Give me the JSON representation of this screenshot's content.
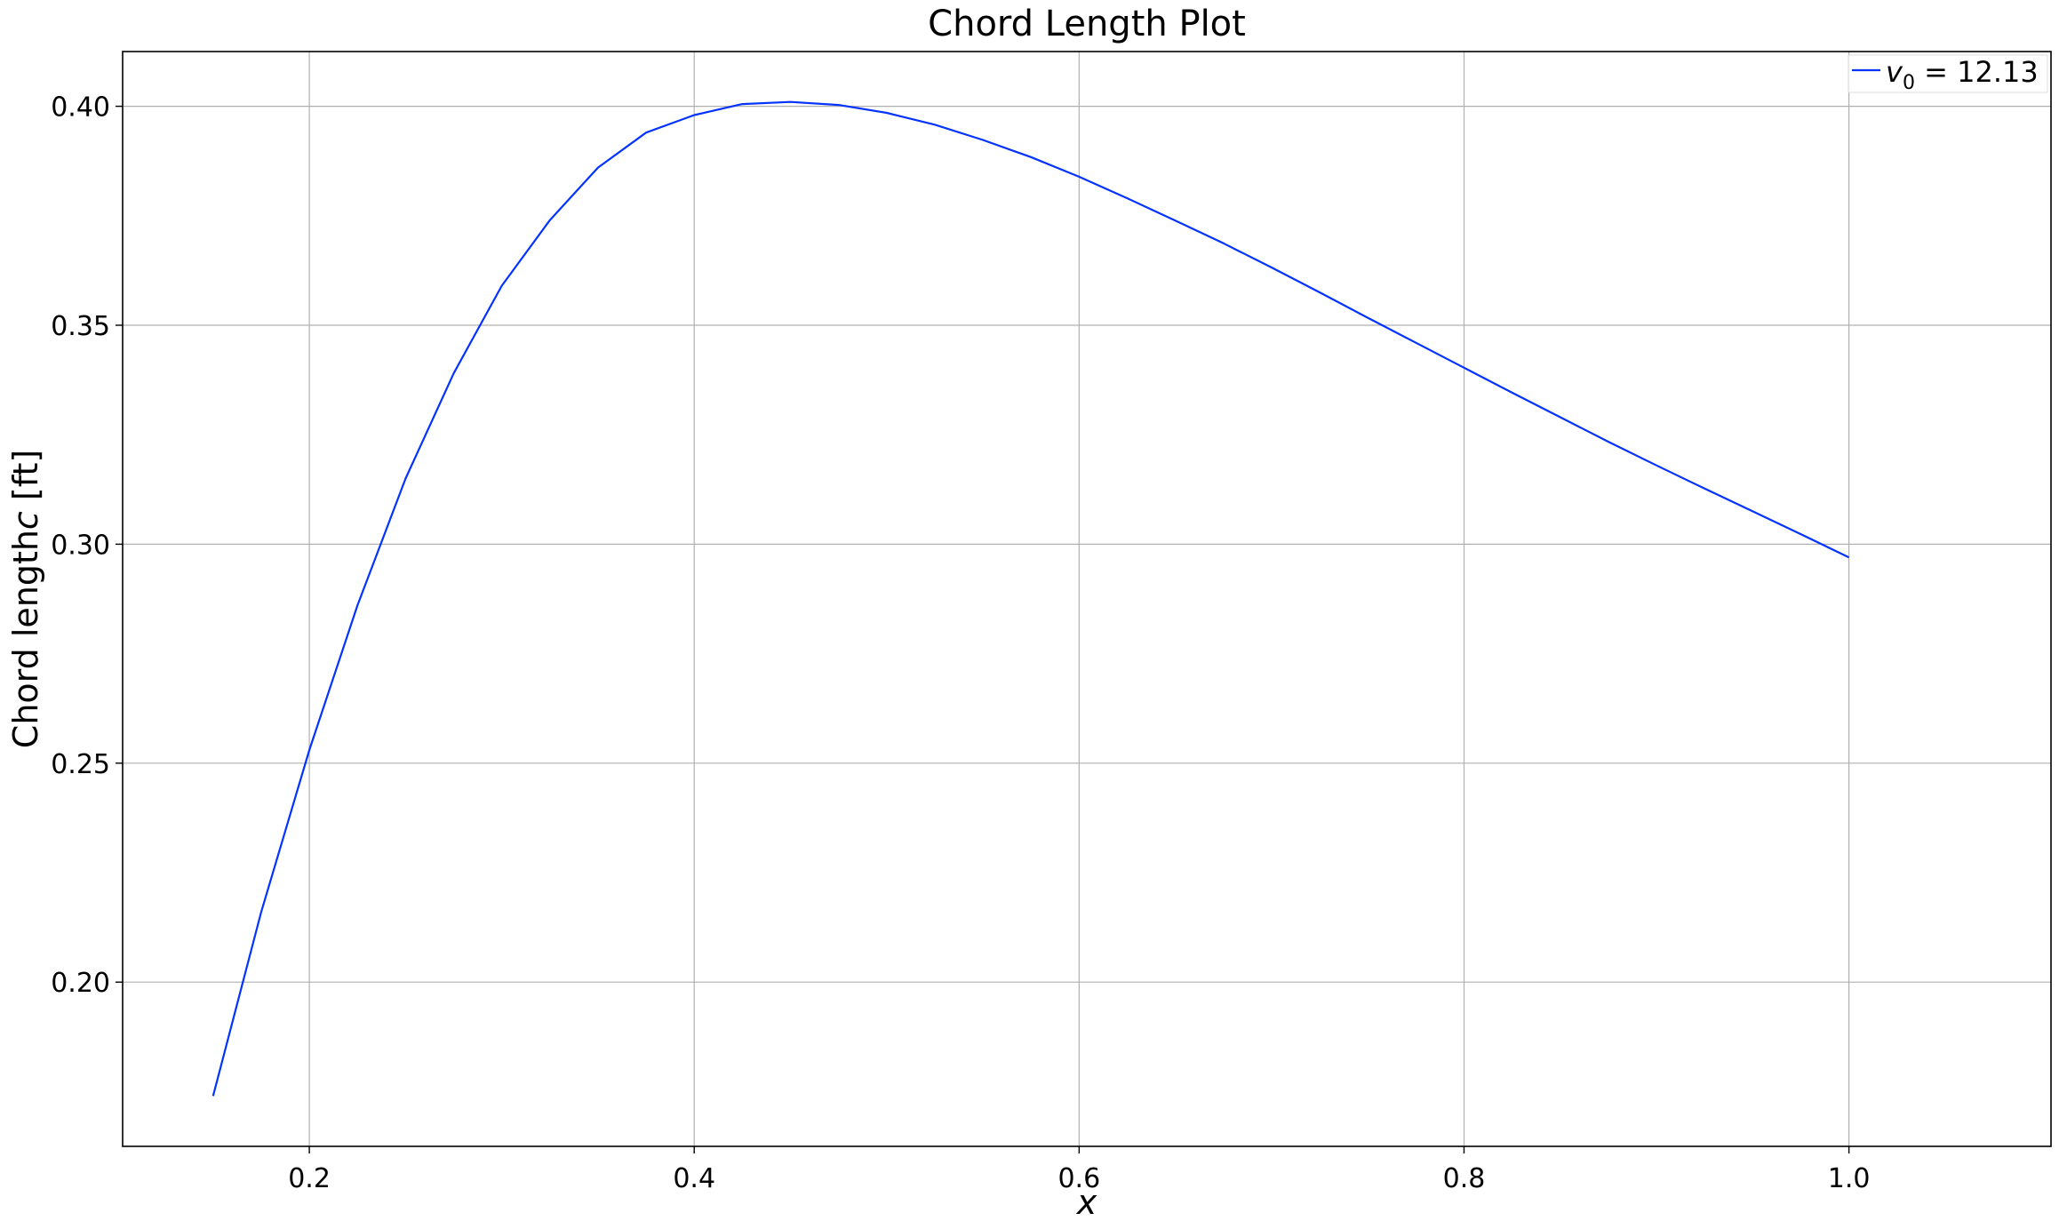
{
  "chart_data": {
    "type": "line",
    "title": "Chord Length Plot",
    "xlabel": "x",
    "ylabel": "Chord length",
    "ylabel_symbol": "c",
    "ylabel_unit": "[ft]",
    "xlim": [
      0.103,
      1.105
    ],
    "ylim": [
      0.1625,
      0.4125
    ],
    "xticks": [
      0.2,
      0.4,
      0.6,
      0.8,
      1.0
    ],
    "xtick_labels": [
      "0.2",
      "0.4",
      "0.6",
      "0.8",
      "1.0"
    ],
    "yticks": [
      0.2,
      0.25,
      0.3,
      0.35,
      0.4
    ],
    "ytick_labels": [
      "0.20",
      "0.25",
      "0.30",
      "0.35",
      "0.40"
    ],
    "grid": true,
    "legend_position": "top-right",
    "series": [
      {
        "name": "v0 = 12.13",
        "legend_symbol": "v",
        "legend_subscript": "0",
        "legend_value": " = 12.13",
        "color": "#0433ff",
        "x": [
          0.15,
          0.175,
          0.2,
          0.225,
          0.25,
          0.275,
          0.3,
          0.325,
          0.35,
          0.375,
          0.4,
          0.425,
          0.45,
          0.475,
          0.5,
          0.525,
          0.55,
          0.575,
          0.6,
          0.625,
          0.65,
          0.675,
          0.7,
          0.725,
          0.75,
          0.775,
          0.8,
          0.825,
          0.85,
          0.875,
          0.9,
          0.925,
          0.95,
          0.975,
          1.0
        ],
        "y": [
          0.174,
          0.216,
          0.253,
          0.286,
          0.315,
          0.339,
          0.359,
          0.374,
          0.386,
          0.394,
          0.398,
          0.4005,
          0.401,
          0.4003,
          0.3985,
          0.3958,
          0.3923,
          0.3884,
          0.3839,
          0.379,
          0.3739,
          0.3687,
          0.3632,
          0.3575,
          0.3517,
          0.346,
          0.3403,
          0.3346,
          0.329,
          0.3234,
          0.318,
          0.3127,
          0.3075,
          0.3023,
          0.297
        ]
      }
    ]
  }
}
